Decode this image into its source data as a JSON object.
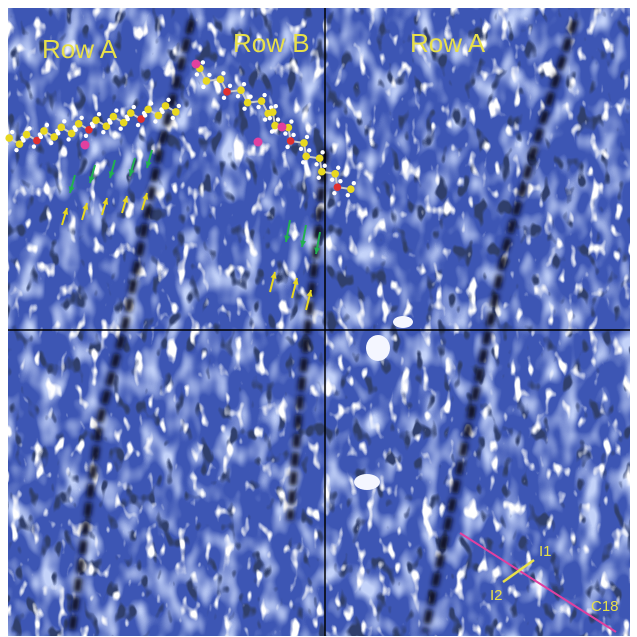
{
  "labels": {
    "row_a_left": "Row A",
    "row_b": "Row B",
    "row_a_right": "Row A",
    "i1": "I1",
    "i2": "I2",
    "c18": "C18"
  }
}
